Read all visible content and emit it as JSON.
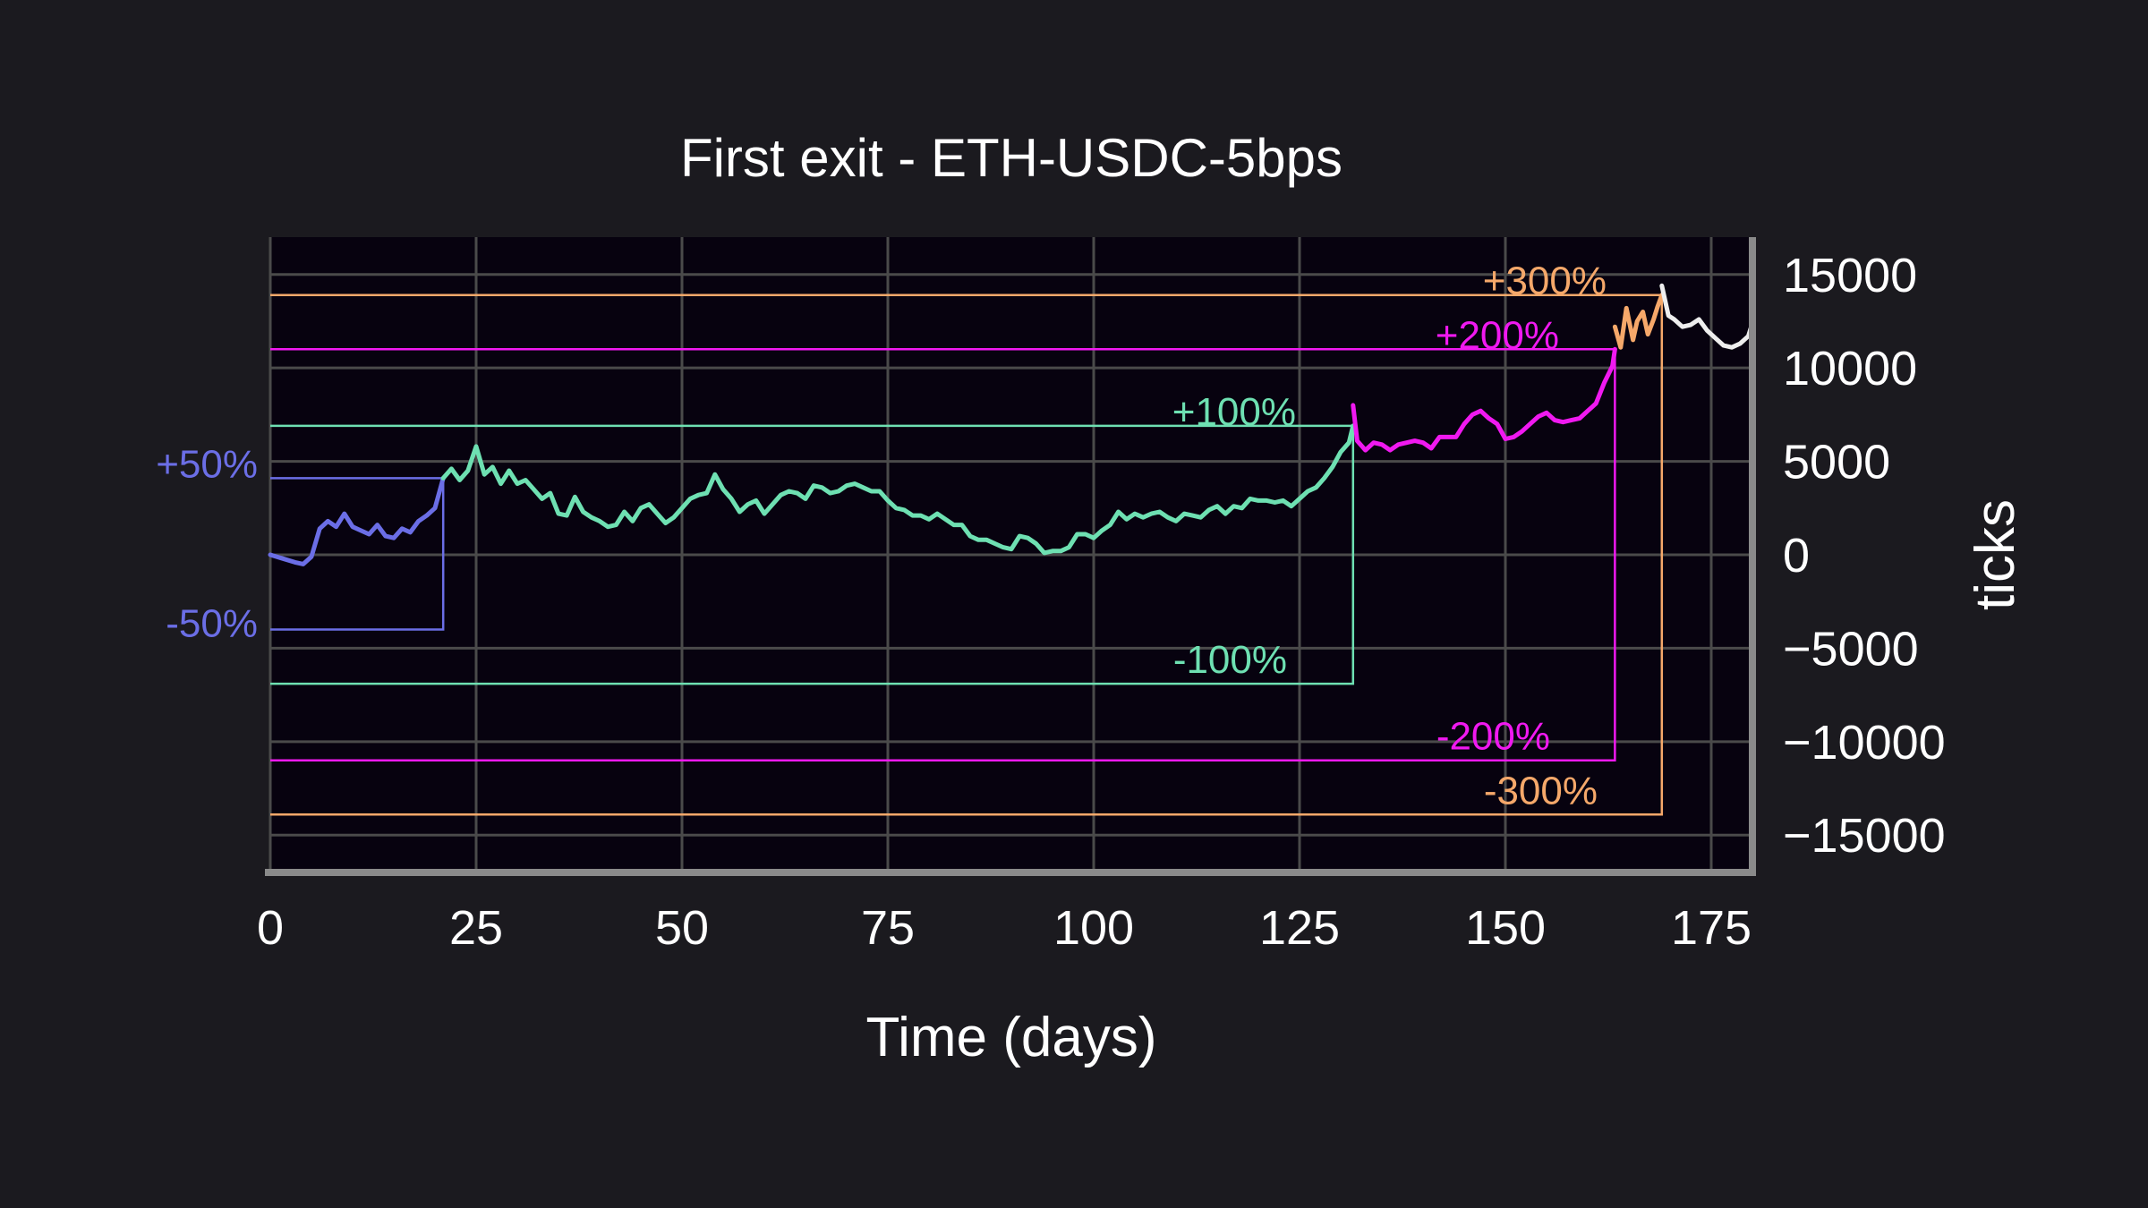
{
  "chart_data": {
    "type": "line",
    "title": "First exit - ETH-USDC-5bps",
    "xlabel": "Time (days)",
    "ylabel": "ticks",
    "xlim": [
      0,
      180
    ],
    "ylim": [
      -17000,
      17000
    ],
    "x_ticks": [
      0,
      25,
      50,
      75,
      100,
      125,
      150,
      175
    ],
    "x_tick_labels": [
      "0",
      "25",
      "50",
      "75",
      "100",
      "125",
      "150",
      "175"
    ],
    "y_ticks": [
      15000,
      10000,
      5000,
      0,
      -5000,
      -10000,
      -15000
    ],
    "y_tick_labels": [
      "15000",
      "10000",
      "5000",
      "0",
      "−5000",
      "−10000",
      "−15000"
    ],
    "grid": true,
    "y_axis_side": "right",
    "colors": {
      "background": "#1b1a1f",
      "plot_background": "#07020f",
      "grid": "#4a4a4a",
      "axis": "#8a8a8a",
      "text": "#ffffff",
      "band_50": "#6b6ee6",
      "band_100": "#6ee0b2",
      "band_200": "#f019f0",
      "band_300": "#f5a86a",
      "after_exit": "#eeeeee"
    },
    "bands": [
      {
        "upper_label": "+50%",
        "lower_label": "-50%",
        "upper": 4100,
        "lower": -4000,
        "exit_day": 21,
        "color": "#6b6ee6"
      },
      {
        "upper_label": "+100%",
        "lower_label": "-100%",
        "upper": 6900,
        "lower": -6900,
        "exit_day": 131.5,
        "color": "#6ee0b2"
      },
      {
        "upper_label": "+200%",
        "lower_label": "-200%",
        "upper": 11000,
        "lower": -11000,
        "exit_day": 163.3,
        "color": "#f019f0"
      },
      {
        "upper_label": "+300%",
        "lower_label": "-300%",
        "upper": 13900,
        "lower": -13900,
        "exit_day": 169,
        "color": "#f5a86a"
      }
    ],
    "series": [
      {
        "color": "#6b6ee6",
        "points": [
          [
            0,
            0
          ],
          [
            1.5,
            -200
          ],
          [
            3,
            -400
          ],
          [
            4,
            -500
          ],
          [
            5,
            -100
          ],
          [
            6,
            1400
          ],
          [
            7,
            1800
          ],
          [
            8,
            1500
          ],
          [
            9,
            2200
          ],
          [
            10,
            1500
          ],
          [
            11,
            1300
          ],
          [
            12,
            1100
          ],
          [
            13,
            1600
          ],
          [
            14,
            1000
          ],
          [
            15,
            900
          ],
          [
            16,
            1400
          ],
          [
            17,
            1200
          ],
          [
            18,
            1800
          ],
          [
            19,
            2100
          ],
          [
            20,
            2500
          ],
          [
            21,
            4100
          ]
        ]
      },
      {
        "color": "#6ee0b2",
        "points": [
          [
            21,
            4100
          ],
          [
            22,
            4600
          ],
          [
            23,
            4000
          ],
          [
            24,
            4500
          ],
          [
            25,
            5800
          ],
          [
            26,
            4300
          ],
          [
            27,
            4700
          ],
          [
            28,
            3800
          ],
          [
            29,
            4500
          ],
          [
            30,
            3800
          ],
          [
            31,
            4000
          ],
          [
            32,
            3500
          ],
          [
            33,
            3000
          ],
          [
            34,
            3300
          ],
          [
            35,
            2200
          ],
          [
            36,
            2100
          ],
          [
            37,
            3100
          ],
          [
            38,
            2300
          ],
          [
            39,
            2000
          ],
          [
            40,
            1800
          ],
          [
            41,
            1500
          ],
          [
            42,
            1600
          ],
          [
            43,
            2300
          ],
          [
            44,
            1800
          ],
          [
            45,
            2500
          ],
          [
            46,
            2700
          ],
          [
            47,
            2200
          ],
          [
            48,
            1700
          ],
          [
            49,
            2000
          ],
          [
            50,
            2500
          ],
          [
            51,
            3000
          ],
          [
            52,
            3200
          ],
          [
            53,
            3300
          ],
          [
            54,
            4300
          ],
          [
            55,
            3500
          ],
          [
            56,
            3000
          ],
          [
            57,
            2300
          ],
          [
            58,
            2700
          ],
          [
            59,
            2900
          ],
          [
            60,
            2200
          ],
          [
            61,
            2700
          ],
          [
            62,
            3200
          ],
          [
            63,
            3400
          ],
          [
            64,
            3300
          ],
          [
            65,
            3000
          ],
          [
            66,
            3700
          ],
          [
            67,
            3600
          ],
          [
            68,
            3300
          ],
          [
            69,
            3400
          ],
          [
            70,
            3700
          ],
          [
            71,
            3800
          ],
          [
            72,
            3600
          ],
          [
            73,
            3400
          ],
          [
            74,
            3400
          ],
          [
            75,
            2900
          ],
          [
            76,
            2500
          ],
          [
            77,
            2400
          ],
          [
            78,
            2100
          ],
          [
            79,
            2100
          ],
          [
            80,
            1900
          ],
          [
            81,
            2200
          ],
          [
            82,
            1900
          ],
          [
            83,
            1600
          ],
          [
            84,
            1600
          ],
          [
            85,
            1000
          ],
          [
            86,
            800
          ],
          [
            87,
            800
          ],
          [
            88,
            600
          ],
          [
            89,
            400
          ],
          [
            90,
            300
          ],
          [
            91,
            1000
          ],
          [
            92,
            900
          ],
          [
            93,
            600
          ],
          [
            94,
            100
          ],
          [
            95,
            200
          ],
          [
            96,
            200
          ],
          [
            97,
            400
          ],
          [
            98,
            1100
          ],
          [
            99,
            1100
          ],
          [
            100,
            900
          ],
          [
            101,
            1300
          ],
          [
            102,
            1600
          ],
          [
            103,
            2300
          ],
          [
            104,
            1900
          ],
          [
            105,
            2200
          ],
          [
            106,
            2000
          ],
          [
            107,
            2200
          ],
          [
            108,
            2300
          ],
          [
            109,
            2000
          ],
          [
            110,
            1800
          ],
          [
            111,
            2200
          ],
          [
            112,
            2100
          ],
          [
            113,
            2000
          ],
          [
            114,
            2400
          ],
          [
            115,
            2600
          ],
          [
            116,
            2200
          ],
          [
            117,
            2600
          ],
          [
            118,
            2500
          ],
          [
            119,
            3000
          ],
          [
            120,
            2900
          ],
          [
            121,
            2900
          ],
          [
            122,
            2800
          ],
          [
            123,
            2900
          ],
          [
            124,
            2600
          ],
          [
            125,
            3000
          ],
          [
            126,
            3400
          ],
          [
            127,
            3600
          ],
          [
            128,
            4100
          ],
          [
            129,
            4700
          ],
          [
            130,
            5500
          ],
          [
            131,
            6000
          ],
          [
            131.5,
            6900
          ]
        ]
      },
      {
        "color": "#f019f0",
        "points": [
          [
            131.5,
            8000
          ],
          [
            132,
            6100
          ],
          [
            133,
            5600
          ],
          [
            134,
            6000
          ],
          [
            135,
            5900
          ],
          [
            136,
            5600
          ],
          [
            137,
            5900
          ],
          [
            138,
            6000
          ],
          [
            139,
            6100
          ],
          [
            140,
            6000
          ],
          [
            141,
            5700
          ],
          [
            142,
            6300
          ],
          [
            143,
            6300
          ],
          [
            144,
            6300
          ],
          [
            145,
            7000
          ],
          [
            146,
            7500
          ],
          [
            147,
            7700
          ],
          [
            148,
            7300
          ],
          [
            149,
            7000
          ],
          [
            150,
            6200
          ],
          [
            151,
            6300
          ],
          [
            152,
            6600
          ],
          [
            153,
            7000
          ],
          [
            154,
            7400
          ],
          [
            155,
            7600
          ],
          [
            156,
            7200
          ],
          [
            157,
            7100
          ],
          [
            158,
            7200
          ],
          [
            159,
            7300
          ],
          [
            160,
            7700
          ],
          [
            161,
            8100
          ],
          [
            162,
            9200
          ],
          [
            163,
            10100
          ],
          [
            163.3,
            11000
          ]
        ]
      },
      {
        "color": "#f5a86a",
        "points": [
          [
            163.3,
            12200
          ],
          [
            164,
            11100
          ],
          [
            164.7,
            13200
          ],
          [
            165.5,
            11500
          ],
          [
            166,
            12500
          ],
          [
            166.7,
            13000
          ],
          [
            167.3,
            11800
          ],
          [
            168,
            12600
          ],
          [
            168.5,
            13300
          ],
          [
            169,
            13900
          ]
        ]
      },
      {
        "color": "#eeeeee",
        "points": [
          [
            169,
            14400
          ],
          [
            169.8,
            12800
          ],
          [
            170.5,
            12600
          ],
          [
            171.5,
            12200
          ],
          [
            172.5,
            12300
          ],
          [
            173.5,
            12600
          ],
          [
            174.5,
            12000
          ],
          [
            175.5,
            11600
          ],
          [
            176.5,
            11200
          ],
          [
            177.5,
            11100
          ],
          [
            178.5,
            11300
          ],
          [
            179.5,
            11700
          ],
          [
            180,
            12400
          ]
        ]
      }
    ]
  }
}
